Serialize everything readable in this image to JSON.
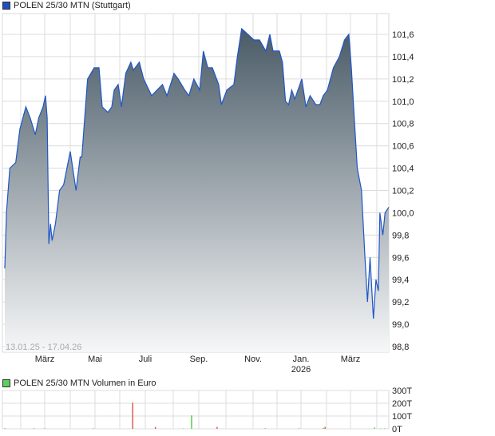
{
  "chart_data": [
    {
      "type": "area",
      "legend": "POLEN 25/30 MTN (Stuttgart)",
      "legend_color": "#1f4fbf",
      "date_range_label": "13.01.25 - 17.04.26",
      "x_tick_labels": [
        "März",
        "Mai",
        "Juli",
        "Sep.",
        "Nov.",
        "Jan.",
        "März"
      ],
      "x_tick_dates": [
        "2025-03-01",
        "2025-05-01",
        "2025-07-01",
        "2025-09-01",
        "2025-11-01",
        "2026-01-01",
        "2026-03-01"
      ],
      "x_sub_label": "2026",
      "y_ticks": [
        "98,8",
        "99,0",
        "99,2",
        "99,4",
        "99,6",
        "99,8",
        "100,0",
        "100,2",
        "100,4",
        "100,6",
        "100,8",
        "101,0",
        "101,2",
        "101,4",
        "101,6"
      ],
      "ylim": [
        98.8,
        101.8
      ],
      "grid": true,
      "line_color": "#1f56c8",
      "fill_top_color": "#4a5b67",
      "fill_bottom_color": "#f6f7f8",
      "points": [
        [
          "2025-01-13",
          99.5
        ],
        [
          "2025-01-15",
          100.0
        ],
        [
          "2025-01-19",
          100.4
        ],
        [
          "2025-01-26",
          100.45
        ],
        [
          "2025-01-31",
          100.75
        ],
        [
          "2025-02-07",
          100.95
        ],
        [
          "2025-02-12",
          100.85
        ],
        [
          "2025-02-18",
          100.7
        ],
        [
          "2025-02-22",
          100.85
        ],
        [
          "2025-02-27",
          100.95
        ],
        [
          "2025-03-02",
          101.05
        ],
        [
          "2025-03-04",
          100.85
        ],
        [
          "2025-03-06",
          99.72
        ],
        [
          "2025-03-08",
          99.9
        ],
        [
          "2025-03-10",
          99.75
        ],
        [
          "2025-03-14",
          99.9
        ],
        [
          "2025-03-19",
          100.2
        ],
        [
          "2025-03-24",
          100.25
        ],
        [
          "2025-04-01",
          100.55
        ],
        [
          "2025-04-04",
          100.4
        ],
        [
          "2025-04-08",
          100.2
        ],
        [
          "2025-04-13",
          100.5
        ],
        [
          "2025-04-15",
          100.5
        ],
        [
          "2025-04-19",
          100.9
        ],
        [
          "2025-04-22",
          101.2
        ],
        [
          "2025-04-26",
          101.25
        ],
        [
          "2025-04-30",
          101.3
        ],
        [
          "2025-05-06",
          101.3
        ],
        [
          "2025-05-10",
          100.95
        ],
        [
          "2025-05-17",
          100.9
        ],
        [
          "2025-05-22",
          100.95
        ],
        [
          "2025-05-25",
          101.1
        ],
        [
          "2025-05-30",
          101.15
        ],
        [
          "2025-06-03",
          100.95
        ],
        [
          "2025-06-08",
          101.25
        ],
        [
          "2025-06-14",
          101.35
        ],
        [
          "2025-06-17",
          101.28
        ],
        [
          "2025-06-24",
          101.35
        ],
        [
          "2025-06-29",
          101.2
        ],
        [
          "2025-07-08",
          101.05
        ],
        [
          "2025-07-14",
          101.1
        ],
        [
          "2025-07-20",
          101.15
        ],
        [
          "2025-07-25",
          101.05
        ],
        [
          "2025-08-02",
          101.25
        ],
        [
          "2025-08-07",
          101.2
        ],
        [
          "2025-08-15",
          101.1
        ],
        [
          "2025-08-20",
          101.05
        ],
        [
          "2025-08-26",
          101.2
        ],
        [
          "2025-09-02",
          101.1
        ],
        [
          "2025-09-06",
          101.45
        ],
        [
          "2025-09-11",
          101.3
        ],
        [
          "2025-09-16",
          101.3
        ],
        [
          "2025-09-23",
          101.15
        ],
        [
          "2025-09-26",
          100.97
        ],
        [
          "2025-10-02",
          101.1
        ],
        [
          "2025-10-10",
          101.15
        ],
        [
          "2025-10-14",
          101.4
        ],
        [
          "2025-10-19",
          101.65
        ],
        [
          "2025-10-26",
          101.6
        ],
        [
          "2025-11-02",
          101.55
        ],
        [
          "2025-11-09",
          101.55
        ],
        [
          "2025-11-17",
          101.45
        ],
        [
          "2025-11-22",
          101.6
        ],
        [
          "2025-11-26",
          101.45
        ],
        [
          "2025-12-04",
          101.45
        ],
        [
          "2025-12-08",
          101.35
        ],
        [
          "2025-12-12",
          101.0
        ],
        [
          "2025-12-16",
          100.97
        ],
        [
          "2025-12-20",
          101.1
        ],
        [
          "2025-12-24",
          101.02
        ],
        [
          "2026-01-02",
          101.2
        ],
        [
          "2026-01-07",
          100.95
        ],
        [
          "2026-01-12",
          101.05
        ],
        [
          "2026-01-19",
          100.97
        ],
        [
          "2026-01-24",
          100.97
        ],
        [
          "2026-01-28",
          101.05
        ],
        [
          "2026-02-02",
          101.1
        ],
        [
          "2026-02-09",
          101.3
        ],
        [
          "2026-02-16",
          101.4
        ],
        [
          "2026-02-22",
          101.55
        ],
        [
          "2026-02-27",
          101.6
        ],
        [
          "2026-03-02",
          101.3
        ],
        [
          "2026-03-05",
          100.9
        ],
        [
          "2026-03-09",
          100.4
        ],
        [
          "2026-03-14",
          100.2
        ],
        [
          "2026-03-18",
          99.6
        ],
        [
          "2026-03-21",
          99.2
        ],
        [
          "2026-03-24",
          99.6
        ],
        [
          "2026-03-28",
          99.05
        ],
        [
          "2026-03-31",
          99.4
        ],
        [
          "2026-04-03",
          99.3
        ],
        [
          "2026-04-05",
          100.0
        ],
        [
          "2026-04-09",
          99.8
        ],
        [
          "2026-04-12",
          100.0
        ],
        [
          "2026-04-17",
          100.05
        ]
      ]
    },
    {
      "type": "bar",
      "legend": "POLEN 25/30 MTN Volumen in Euro",
      "legend_color": "#5ccf5c",
      "y_ticks": [
        "0T",
        "100T",
        "200T",
        "300T"
      ],
      "ylim": [
        0,
        300
      ],
      "grid": true,
      "up_color": "#4fd04f",
      "down_color": "#e05a5a",
      "bars": [
        [
          "2025-01-13",
          5,
          "up"
        ],
        [
          "2025-02-16",
          4,
          "up"
        ],
        [
          "2025-03-01",
          3,
          "down"
        ],
        [
          "2025-04-29",
          4,
          "up"
        ],
        [
          "2025-06-16",
          205,
          "down"
        ],
        [
          "2025-07-12",
          15,
          "down"
        ],
        [
          "2025-08-13",
          3,
          "up"
        ],
        [
          "2025-08-23",
          105,
          "up"
        ],
        [
          "2025-09-21",
          15,
          "down"
        ],
        [
          "2025-11-16",
          4,
          "down"
        ],
        [
          "2025-12-29",
          4,
          "up"
        ],
        [
          "2026-01-28",
          6,
          "up"
        ],
        [
          "2026-01-30",
          15,
          "down"
        ],
        [
          "2026-03-29",
          10,
          "up"
        ],
        [
          "2026-04-06",
          3,
          "up"
        ],
        [
          "2026-04-11",
          3,
          "down"
        ]
      ]
    }
  ]
}
